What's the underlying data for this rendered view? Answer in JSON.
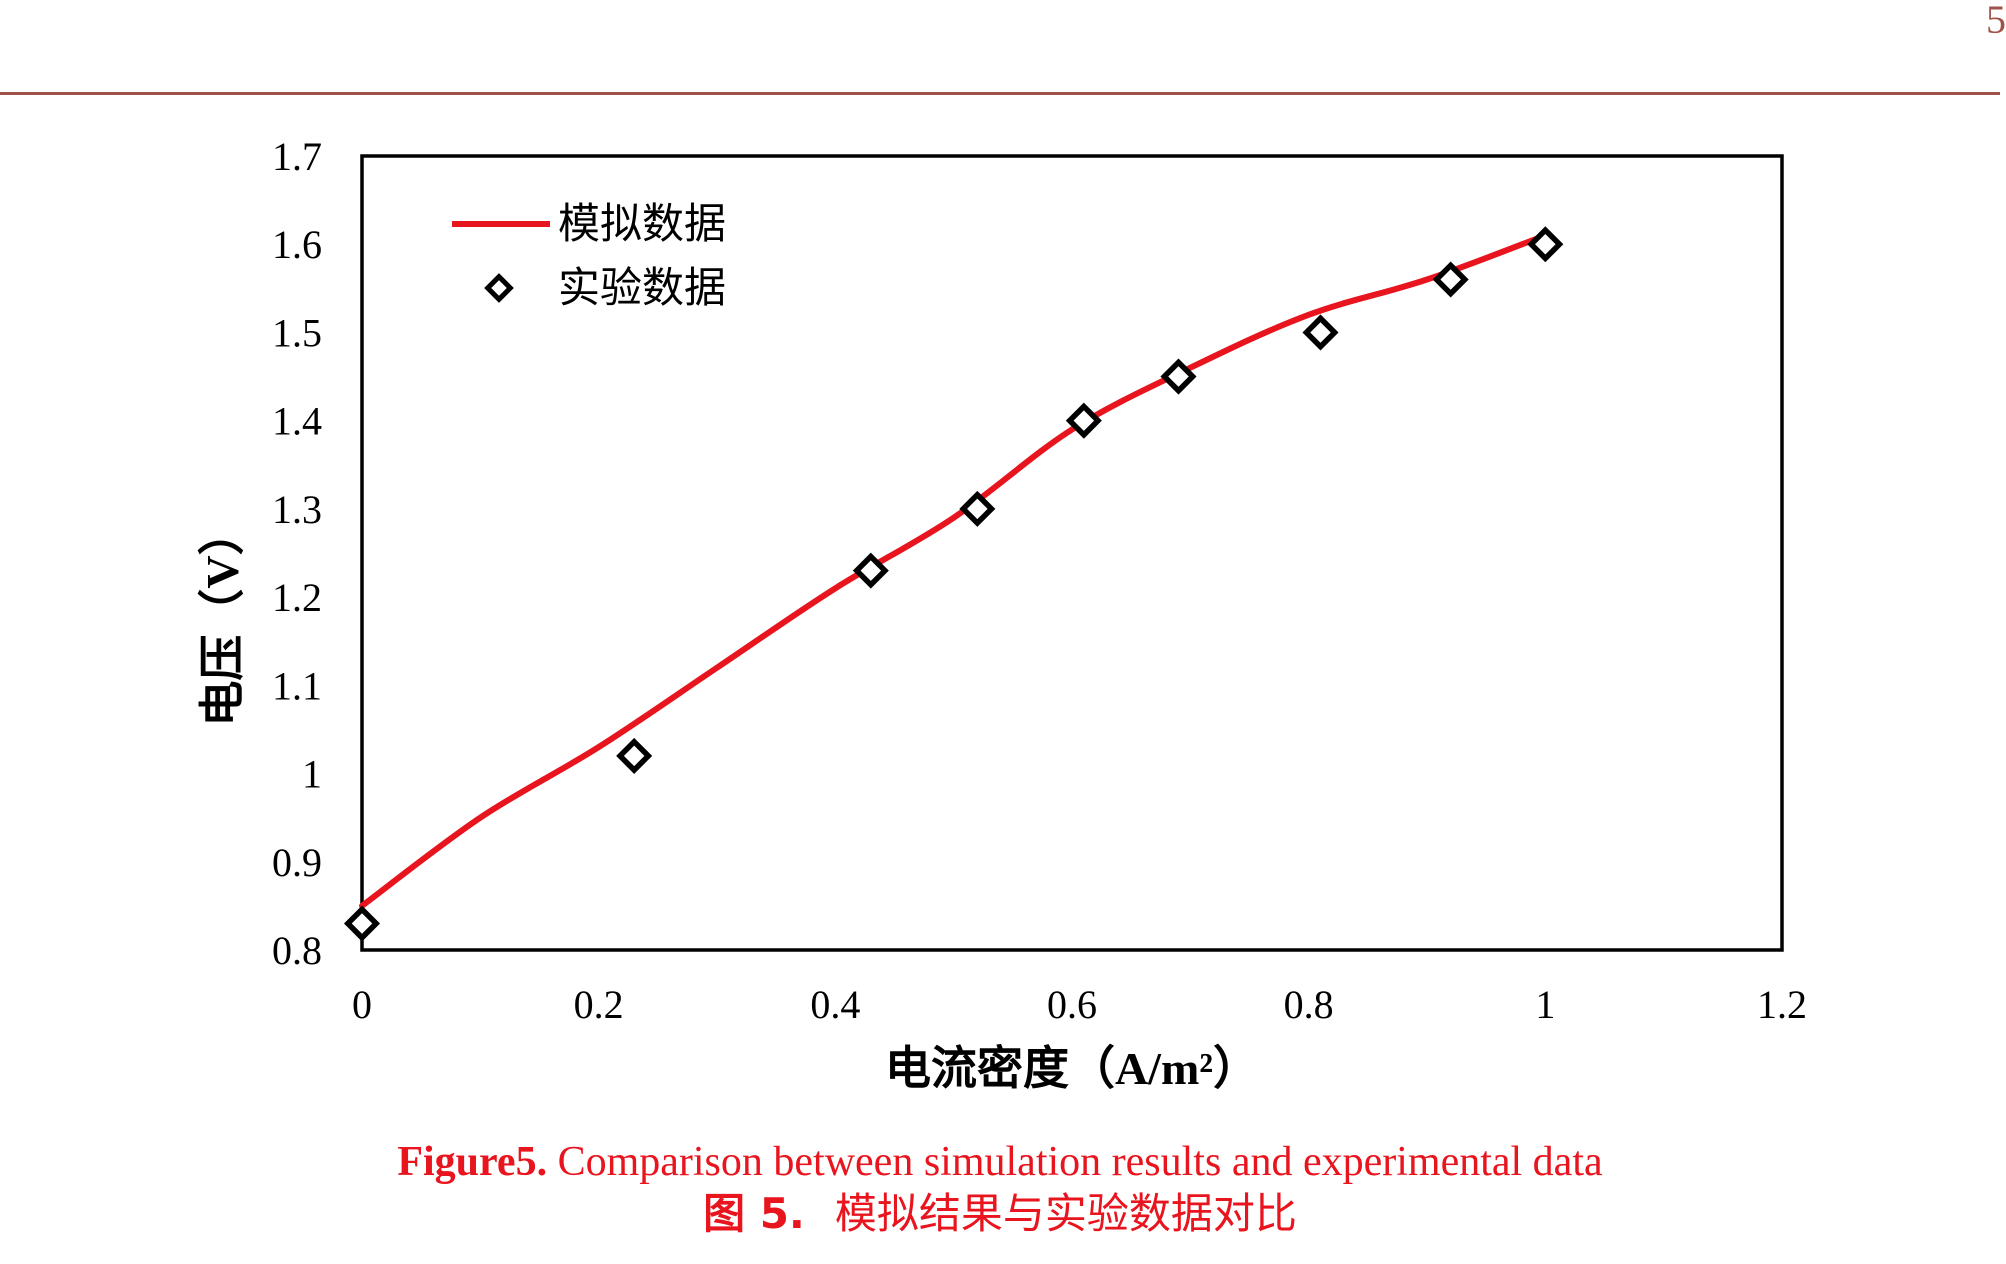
{
  "page": {
    "header_rule_color": "#a0524a",
    "page_number_fragment": "5"
  },
  "chart_data": {
    "type": "line",
    "xlabel": "电流密度（A/m²）",
    "ylabel": "电压（V）",
    "xlim": [
      0,
      1.2
    ],
    "ylim": [
      0.8,
      1.7
    ],
    "xticks": [
      "0",
      "0.2",
      "0.4",
      "0.6",
      "0.8",
      "1",
      "1.2"
    ],
    "yticks": [
      "0.8",
      "0.9",
      "1",
      "1.1",
      "1.2",
      "1.3",
      "1.4",
      "1.5",
      "1.6",
      "1.7"
    ],
    "grid": false,
    "legend_position": "top-left",
    "series": [
      {
        "name": "模拟数据",
        "kind": "line",
        "color": "#e8141e",
        "x": [
          0,
          0.1,
          0.2,
          0.3,
          0.4,
          0.5,
          0.6,
          0.7,
          0.8,
          0.9,
          1.0
        ],
        "y": [
          0.85,
          0.95,
          1.03,
          1.12,
          1.21,
          1.29,
          1.39,
          1.46,
          1.52,
          1.56,
          1.61
        ]
      },
      {
        "name": "实验数据",
        "kind": "scatter",
        "marker": "diamond",
        "color": "#000000",
        "x": [
          0,
          0.23,
          0.43,
          0.52,
          0.61,
          0.69,
          0.81,
          0.92,
          1.0
        ],
        "y": [
          0.83,
          1.02,
          1.23,
          1.3,
          1.4,
          1.45,
          1.5,
          1.56,
          1.6
        ]
      }
    ]
  },
  "caption": {
    "en_label": "Figure5.",
    "en_text": " Comparison between simulation results and experimental data",
    "zh_label": "图 5.",
    "zh_text": "模拟结果与实验数据对比",
    "color": "#e8141e"
  }
}
